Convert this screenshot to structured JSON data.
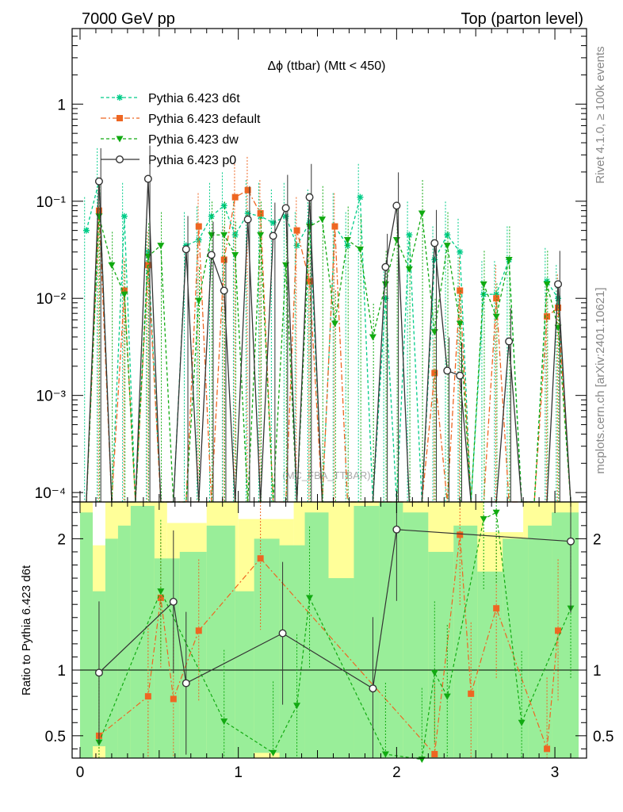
{
  "header": {
    "left": "7000 GeV pp",
    "right": "Top (parton level)"
  },
  "side_text": {
    "top": "Rivet 4.1.0, ≥ 100k events",
    "bottom": "mcplots.cern.ch [arXiv:2401.10621]"
  },
  "chart_data": {
    "type": "line",
    "title": "Δϕ (ttbar) (Mtt < 450)",
    "watermark": "(MC_FBA_TTBAR)",
    "xlabel": "",
    "ylabel": "",
    "ratio_ylabel": "Ratio to Pythia 6.423 d6t",
    "xlim": [
      -0.05,
      3.2
    ],
    "ylim": [
      8e-05,
      6
    ],
    "yscale": "log",
    "ratio_ylim": [
      0.33,
      2.28
    ],
    "x_ticks": [
      "0",
      "1",
      "2",
      "3"
    ],
    "y_ticks": [
      "10⁻⁴",
      "10⁻³",
      "10⁻²",
      "10⁻¹",
      "1"
    ],
    "ratio_ticks": [
      "0.5",
      "1",
      "2"
    ],
    "floor_value": 8e-05,
    "legend_position": "top-left",
    "x": [
      0.04,
      0.12,
      0.2,
      0.28,
      0.35,
      0.43,
      0.51,
      0.59,
      0.67,
      0.75,
      0.83,
      0.91,
      0.98,
      1.06,
      1.14,
      1.22,
      1.3,
      1.37,
      1.45,
      1.53,
      1.61,
      1.69,
      1.77,
      1.85,
      1.93,
      2.0,
      2.08,
      2.16,
      2.24,
      2.32,
      2.4,
      2.47,
      2.55,
      2.63,
      2.71,
      2.79,
      2.87,
      2.95,
      3.02,
      3.1
    ],
    "series": [
      {
        "name": "Pythia 6.423 d6t",
        "color": "#00cc88",
        "dash": "4 3",
        "marker": "star",
        "values": [
          0.05,
          0.16,
          0,
          0.07,
          0,
          0.03,
          0,
          0,
          0.035,
          0.04,
          0.07,
          0.09,
          0.045,
          0.075,
          0.07,
          0.06,
          0.07,
          0.035,
          0.06,
          0,
          0.055,
          0.035,
          0.11,
          0,
          0.01,
          0,
          0.045,
          0,
          0.025,
          0.045,
          0.03,
          0,
          0.011,
          0.011,
          0.025,
          0,
          0,
          0.015,
          0.01,
          0
        ]
      },
      {
        "name": "Pythia 6.423 default",
        "color": "#ee6622",
        "dash": "7 3 2 3",
        "marker": "square",
        "values": [
          0,
          0.08,
          0,
          0.012,
          0,
          0.022,
          0,
          0,
          0,
          0.055,
          0,
          0.025,
          0.11,
          0.13,
          0.075,
          0,
          0,
          0.05,
          0.015,
          0,
          0.055,
          0,
          0,
          0,
          0,
          0,
          0,
          0,
          0.0017,
          0,
          0.012,
          0,
          0,
          0.01,
          0,
          0,
          0,
          0.0065,
          0.008,
          0
        ]
      },
      {
        "name": "Pythia 6.423 dw",
        "color": "#11aa11",
        "dash": "4 3",
        "marker": "triangle",
        "values": [
          0,
          0.07,
          0.022,
          0.011,
          0,
          0.027,
          0.035,
          0,
          0,
          0.0095,
          0.045,
          0.045,
          0.028,
          0,
          0.045,
          0,
          0.022,
          0,
          0.055,
          0.065,
          0.0055,
          0.04,
          0.032,
          0.004,
          0.014,
          0.04,
          0.02,
          0.075,
          0.0045,
          0.035,
          0.0055,
          0,
          0.014,
          0.0065,
          0.025,
          0,
          0,
          0.014,
          0.005,
          0
        ]
      },
      {
        "name": "Pythia 6.423 p0",
        "color": "#333333",
        "dash": "",
        "marker": "circle",
        "values": [
          0,
          0.16,
          0,
          0,
          0,
          0.17,
          0,
          0,
          0.032,
          0,
          0.028,
          0.012,
          0,
          0.065,
          0,
          0.044,
          0.085,
          0,
          0.11,
          0,
          0,
          0,
          0,
          0,
          0.021,
          0.09,
          0,
          0,
          0.037,
          0.0018,
          0.0016,
          0,
          0,
          0,
          0.0036,
          0,
          0,
          0,
          0.014,
          0
        ]
      }
    ],
    "ratio_series": [
      {
        "name": "Pythia 6.423 default",
        "x": [
          0.12,
          0.43,
          0.51,
          0.59,
          0.75,
          1.14,
          2.24,
          2.4,
          2.47,
          2.63,
          2.95,
          3.02
        ],
        "values": [
          0.5,
          0.8,
          1.55,
          0.78,
          1.3,
          1.85,
          0.36,
          2.03,
          0.82,
          1.47,
          0.4,
          1.3
        ]
      },
      {
        "name": "Pythia 6.423 dw",
        "x": [
          0.12,
          0.51,
          0.91,
          1.22,
          1.37,
          1.45,
          1.93,
          2.16,
          2.24,
          2.32,
          2.55,
          2.63,
          2.79,
          3.1
        ],
        "values": [
          0.45,
          1.6,
          0.61,
          0.37,
          0.73,
          1.55,
          0.36,
          0.32,
          0.98,
          0.8,
          2.15,
          2.2,
          0.6,
          1.47
        ]
      },
      {
        "name": "Pythia 6.423 p0",
        "x": [
          0.12,
          0.59,
          0.67,
          1.28,
          1.85,
          2.0,
          3.1
        ],
        "values": [
          0.98,
          1.52,
          0.9,
          1.28,
          0.86,
          2.07,
          1.98
        ]
      }
    ],
    "ratio_bands": {
      "yellow": [
        {
          "x0": 0.0,
          "x1": 0.08,
          "lo": 0.33,
          "hi": 2.28
        },
        {
          "x0": 0.08,
          "x1": 0.16,
          "lo": 0.33,
          "hi": 1.95
        },
        {
          "x0": 0.16,
          "x1": 0.55,
          "lo": 0.33,
          "hi": 2.28
        },
        {
          "x0": 0.55,
          "x1": 0.8,
          "lo": 0.33,
          "hi": 2.12
        },
        {
          "x0": 0.8,
          "x1": 1.0,
          "lo": 0.33,
          "hi": 2.28
        },
        {
          "x0": 1.0,
          "x1": 1.35,
          "lo": 0.33,
          "hi": 2.15
        },
        {
          "x0": 1.35,
          "x1": 1.85,
          "lo": 0.33,
          "hi": 2.28
        },
        {
          "x0": 1.85,
          "x1": 2.55,
          "lo": 0.33,
          "hi": 2.28
        },
        {
          "x0": 2.55,
          "x1": 2.8,
          "lo": 0.33,
          "hi": 2.05
        },
        {
          "x0": 2.8,
          "x1": 3.15,
          "lo": 0.33,
          "hi": 2.28
        }
      ],
      "green": [
        {
          "x0": 0.0,
          "x1": 0.08,
          "lo": 0.33,
          "hi": 2.2
        },
        {
          "x0": 0.08,
          "x1": 0.16,
          "lo": 0.42,
          "hi": 1.6
        },
        {
          "x0": 0.16,
          "x1": 0.24,
          "lo": 0.33,
          "hi": 2.0
        },
        {
          "x0": 0.24,
          "x1": 0.32,
          "lo": 0.33,
          "hi": 2.1
        },
        {
          "x0": 0.32,
          "x1": 0.47,
          "lo": 0.33,
          "hi": 2.25
        },
        {
          "x0": 0.47,
          "x1": 0.63,
          "lo": 0.33,
          "hi": 1.85
        },
        {
          "x0": 0.63,
          "x1": 0.8,
          "lo": 0.33,
          "hi": 1.9
        },
        {
          "x0": 0.8,
          "x1": 0.98,
          "lo": 0.33,
          "hi": 2.1
        },
        {
          "x0": 0.98,
          "x1": 1.1,
          "lo": 0.33,
          "hi": 1.6
        },
        {
          "x0": 1.1,
          "x1": 1.26,
          "lo": 0.37,
          "hi": 2.0
        },
        {
          "x0": 1.26,
          "x1": 1.42,
          "lo": 0.33,
          "hi": 1.95
        },
        {
          "x0": 1.42,
          "x1": 1.57,
          "lo": 0.33,
          "hi": 2.2
        },
        {
          "x0": 1.57,
          "x1": 1.73,
          "lo": 0.33,
          "hi": 1.7
        },
        {
          "x0": 1.73,
          "x1": 1.89,
          "lo": 0.33,
          "hi": 2.25
        },
        {
          "x0": 1.89,
          "x1": 2.04,
          "lo": 0.33,
          "hi": 2.28
        },
        {
          "x0": 2.04,
          "x1": 2.2,
          "lo": 0.33,
          "hi": 2.2
        },
        {
          "x0": 2.2,
          "x1": 2.36,
          "lo": 0.33,
          "hi": 1.9
        },
        {
          "x0": 2.36,
          "x1": 2.51,
          "lo": 0.33,
          "hi": 2.1
        },
        {
          "x0": 2.51,
          "x1": 2.67,
          "lo": 0.33,
          "hi": 1.75
        },
        {
          "x0": 2.67,
          "x1": 2.83,
          "lo": 0.33,
          "hi": 2.0
        },
        {
          "x0": 2.83,
          "x1": 2.98,
          "lo": 0.33,
          "hi": 2.1
        },
        {
          "x0": 2.98,
          "x1": 3.15,
          "lo": 0.33,
          "hi": 2.2
        }
      ]
    }
  }
}
